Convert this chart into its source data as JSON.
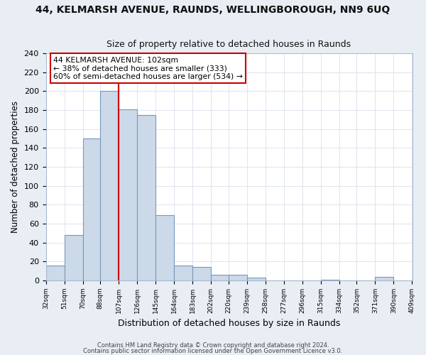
{
  "title": "44, KELMARSH AVENUE, RAUNDS, WELLINGBOROUGH, NN9 6UQ",
  "subtitle": "Size of property relative to detached houses in Raunds",
  "xlabel": "Distribution of detached houses by size in Raunds",
  "ylabel": "Number of detached properties",
  "bar_color": "#ccd9e8",
  "bar_edge_color": "#7799bb",
  "axes_bg_color": "#ffffff",
  "fig_bg_color": "#e8eef4",
  "grid_color": "#dde5ee",
  "bin_edges": [
    32,
    51,
    70,
    88,
    107,
    126,
    145,
    164,
    183,
    202,
    220,
    239,
    258,
    277,
    296,
    315,
    334,
    352,
    371,
    390,
    409
  ],
  "bin_labels": [
    "32sqm",
    "51sqm",
    "70sqm",
    "88sqm",
    "107sqm",
    "126sqm",
    "145sqm",
    "164sqm",
    "183sqm",
    "202sqm",
    "220sqm",
    "239sqm",
    "258sqm",
    "277sqm",
    "296sqm",
    "315sqm",
    "334sqm",
    "352sqm",
    "371sqm",
    "390sqm",
    "409sqm"
  ],
  "counts": [
    16,
    48,
    150,
    200,
    181,
    175,
    69,
    16,
    14,
    6,
    6,
    3,
    0,
    0,
    0,
    1,
    0,
    0,
    4,
    0
  ],
  "vline_x": 107,
  "vline_color": "#cc0000",
  "annotation_line1": "44 KELMARSH AVENUE: 102sqm",
  "annotation_line2": "← 38% of detached houses are smaller (333)",
  "annotation_line3": "60% of semi-detached houses are larger (534) →",
  "annotation_box_color": "#ffffff",
  "annotation_box_edge": "#cc0000",
  "ylim": [
    0,
    240
  ],
  "yticks": [
    0,
    20,
    40,
    60,
    80,
    100,
    120,
    140,
    160,
    180,
    200,
    220,
    240
  ],
  "footer1": "Contains HM Land Registry data © Crown copyright and database right 2024.",
  "footer2": "Contains public sector information licensed under the Open Government Licence v3.0."
}
